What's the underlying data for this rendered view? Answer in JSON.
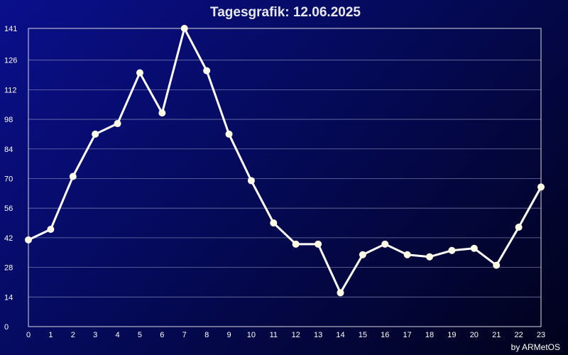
{
  "chart_data": {
    "type": "line",
    "title": "Tagesgrafik: 12.06.2025",
    "x": [
      0,
      1,
      2,
      3,
      4,
      5,
      6,
      7,
      8,
      9,
      10,
      11,
      12,
      13,
      14,
      15,
      16,
      17,
      18,
      19,
      20,
      21,
      22,
      23
    ],
    "xticks": [
      "0",
      "1",
      "2",
      "3",
      "4",
      "5",
      "6",
      "7",
      "8",
      "9",
      "10",
      "11",
      "12",
      "13",
      "14",
      "15",
      "16",
      "17",
      "18",
      "19",
      "20",
      "21",
      "22",
      "23"
    ],
    "yticks": [
      "0",
      "14",
      "28",
      "42",
      "56",
      "70",
      "84",
      "98",
      "112",
      "126",
      "141"
    ],
    "ylim": [
      0,
      141
    ],
    "xlim": [
      0,
      23
    ],
    "grid": true,
    "series": [
      {
        "values": [
          41,
          46,
          71,
          91,
          96,
          120,
          101,
          141,
          121,
          91,
          69,
          49,
          39,
          39,
          16,
          34,
          39,
          34,
          33,
          36,
          37,
          29,
          47,
          66
        ],
        "color": "#ffffff"
      }
    ],
    "credit": "by ARMetOS"
  }
}
